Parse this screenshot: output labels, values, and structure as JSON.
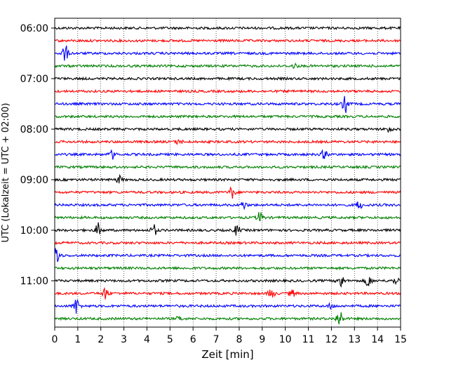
{
  "chart_data": {
    "type": "line",
    "title": "",
    "xlabel": "Zeit  [min]",
    "ylabel": "UTC (Lokalzeit = UTC + 02:00)",
    "xlim": [
      0,
      15
    ],
    "xticks": [
      "0",
      "1",
      "2",
      "3",
      "4",
      "5",
      "6",
      "7",
      "8",
      "9",
      "10",
      "11",
      "12",
      "13",
      "14",
      "15"
    ],
    "yticks": [
      "06:00",
      "07:00",
      "08:00",
      "09:00",
      "10:00",
      "11:00"
    ],
    "grid": "vertical dotted",
    "row_colors": [
      "#000000",
      "#ff0000",
      "#0000ff",
      "#008000"
    ],
    "rows": [
      {
        "start": "06:00",
        "events": []
      },
      {
        "start": "06:15",
        "events": []
      },
      {
        "start": "06:30",
        "events": [
          {
            "t": 0.45,
            "amp": 12
          }
        ]
      },
      {
        "start": "06:45",
        "events": [
          {
            "t": 10.4,
            "amp": 3
          }
        ]
      },
      {
        "start": "07:00",
        "events": []
      },
      {
        "start": "07:15",
        "events": []
      },
      {
        "start": "07:30",
        "events": [
          {
            "t": 12.6,
            "amp": 12
          }
        ]
      },
      {
        "start": "07:45",
        "events": []
      },
      {
        "start": "08:00",
        "events": [
          {
            "t": 14.5,
            "amp": 4
          }
        ]
      },
      {
        "start": "08:15",
        "events": [
          {
            "t": 5.4,
            "amp": 4
          }
        ]
      },
      {
        "start": "08:30",
        "events": [
          {
            "t": 2.5,
            "amp": 6
          },
          {
            "t": 11.7,
            "amp": 7
          }
        ]
      },
      {
        "start": "08:45",
        "events": []
      },
      {
        "start": "09:00",
        "events": [
          {
            "t": 2.8,
            "amp": 5
          }
        ]
      },
      {
        "start": "09:15",
        "events": [
          {
            "t": 7.7,
            "amp": 9
          }
        ]
      },
      {
        "start": "09:30",
        "events": [
          {
            "t": 8.2,
            "amp": 5
          },
          {
            "t": 13.2,
            "amp": 6
          }
        ]
      },
      {
        "start": "09:45",
        "events": [
          {
            "t": 8.9,
            "amp": 8
          }
        ]
      },
      {
        "start": "10:00",
        "events": [
          {
            "t": 1.9,
            "amp": 10
          },
          {
            "t": 4.3,
            "amp": 8
          },
          {
            "t": 7.9,
            "amp": 7
          }
        ]
      },
      {
        "start": "10:15",
        "events": []
      },
      {
        "start": "10:30",
        "events": [
          {
            "t": 0.1,
            "amp": 14
          }
        ]
      },
      {
        "start": "10:45",
        "events": []
      },
      {
        "start": "11:00",
        "events": [
          {
            "t": 12.4,
            "amp": 11
          },
          {
            "t": 13.6,
            "amp": 10
          },
          {
            "t": 14.8,
            "amp": 5
          }
        ]
      },
      {
        "start": "11:15",
        "events": [
          {
            "t": 2.2,
            "amp": 8
          },
          {
            "t": 9.4,
            "amp": 8
          },
          {
            "t": 10.3,
            "amp": 5
          }
        ]
      },
      {
        "start": "11:30",
        "events": [
          {
            "t": 0.95,
            "amp": 12
          },
          {
            "t": 12.0,
            "amp": 4
          }
        ]
      },
      {
        "start": "11:45",
        "events": [
          {
            "t": 12.35,
            "amp": 13
          },
          {
            "t": 5.4,
            "amp": 3
          }
        ]
      }
    ]
  }
}
